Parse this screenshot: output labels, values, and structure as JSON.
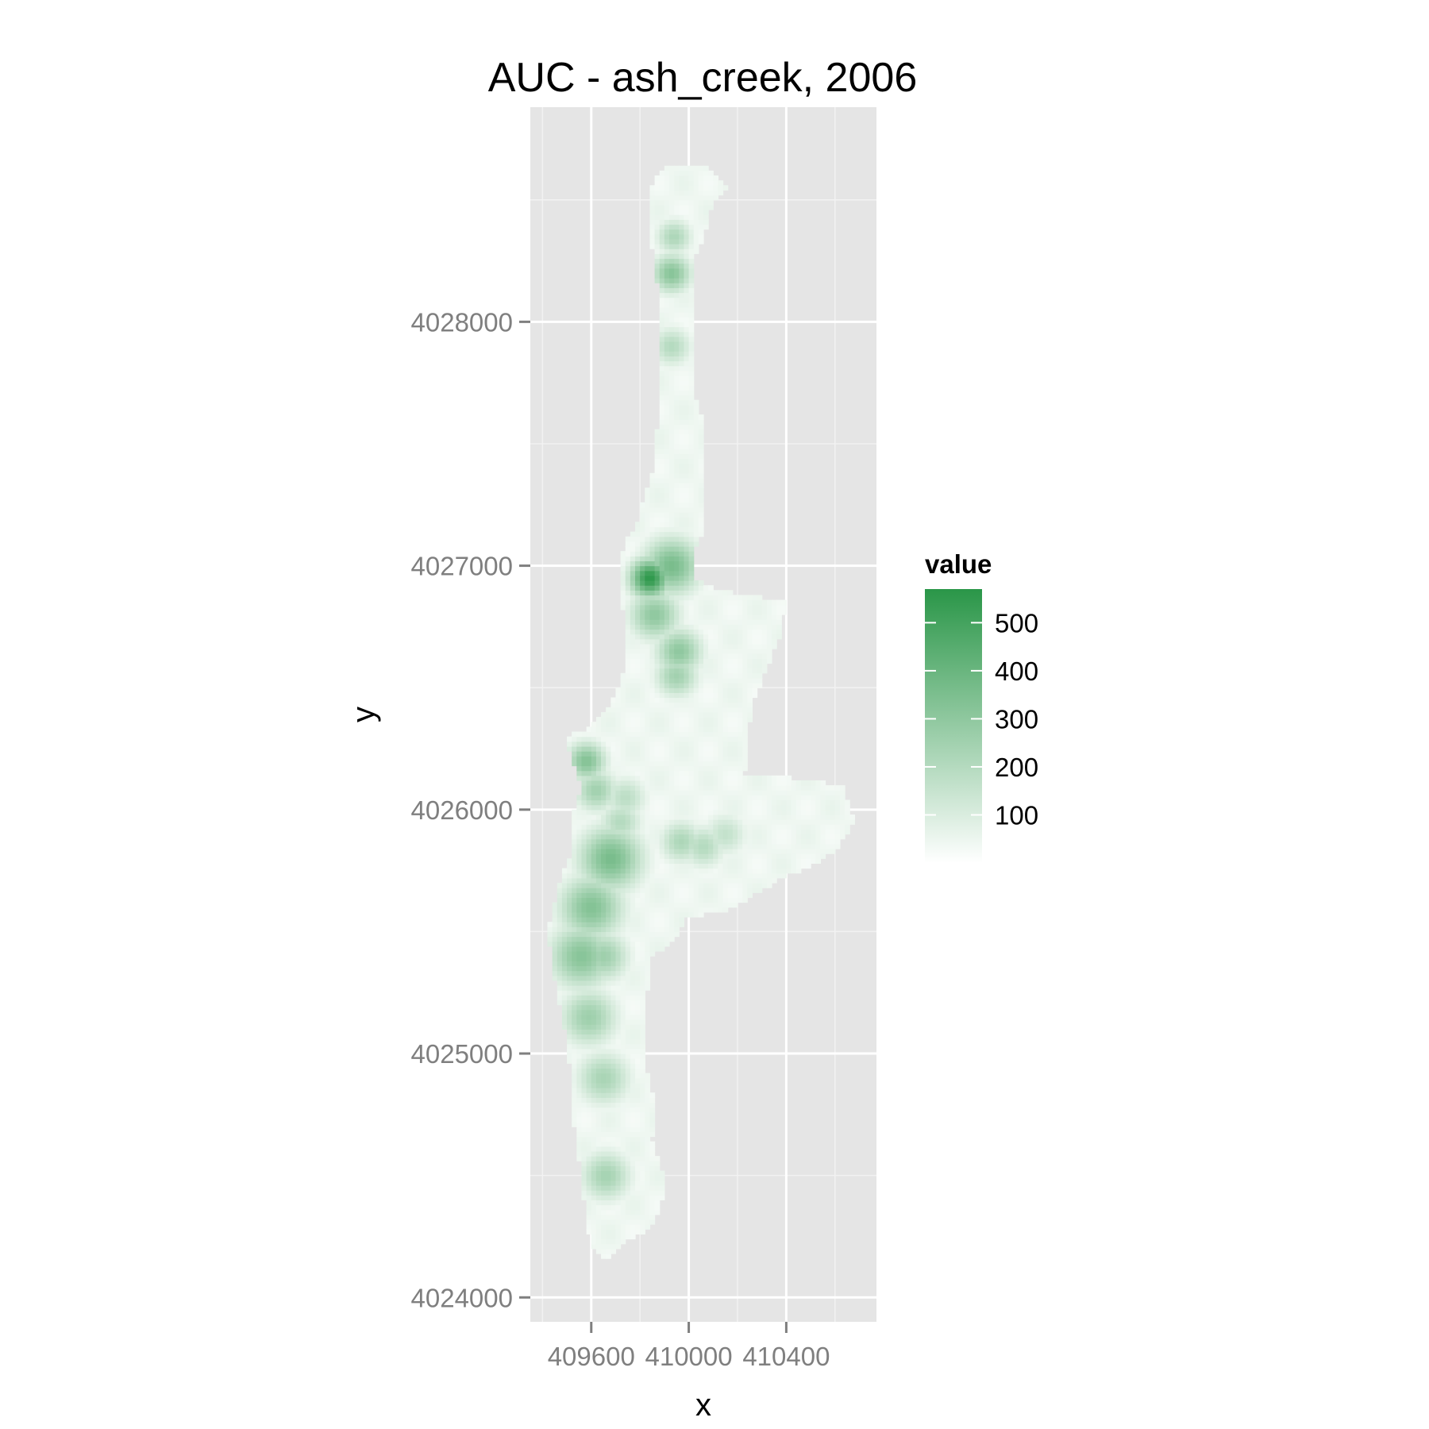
{
  "chart_data": {
    "type": "heatmap",
    "title": "AUC - ash_creek, 2006",
    "xlabel": "x",
    "ylabel": "y",
    "xlim": [
      409350,
      410770
    ],
    "ylim": [
      4023900,
      4028880
    ],
    "x_ticks": [
      409600,
      410000,
      410400
    ],
    "x_tick_labels": [
      "409600",
      "410000",
      "410400"
    ],
    "y_ticks": [
      4024000,
      4025000,
      4026000,
      4027000,
      4028000
    ],
    "y_tick_labels": [
      "4024000",
      "4025000",
      "4026000",
      "4027000",
      "4028000"
    ],
    "grid": true,
    "colors": {
      "panel": "#e5e5e5",
      "grid_major": "#ffffff",
      "grid_minor": "#f2f2f2",
      "low": "#ffffff",
      "high": "#2a9648"
    },
    "legend": {
      "title": "value",
      "position": "right",
      "min": 0,
      "max": 570,
      "breaks": [
        100,
        200,
        300,
        400,
        500
      ],
      "break_labels": [
        "100",
        "200",
        "300",
        "400",
        "500"
      ]
    },
    "region": {
      "cell_size": 20,
      "outline": [
        [
          409915,
          4028640
        ],
        [
          410050,
          4028650
        ],
        [
          410170,
          4028550
        ],
        [
          410100,
          4028500
        ],
        [
          410060,
          4028350
        ],
        [
          410020,
          4028250
        ],
        [
          410020,
          4027700
        ],
        [
          410060,
          4027600
        ],
        [
          410060,
          4027150
        ],
        [
          410020,
          4027050
        ],
        [
          410020,
          4026950
        ],
        [
          410130,
          4026900
        ],
        [
          410400,
          4026850
        ],
        [
          410370,
          4026700
        ],
        [
          410320,
          4026580
        ],
        [
          410270,
          4026450
        ],
        [
          410250,
          4026350
        ],
        [
          410230,
          4026150
        ],
        [
          410420,
          4026130
        ],
        [
          410630,
          4026100
        ],
        [
          410680,
          4025950
        ],
        [
          410600,
          4025830
        ],
        [
          410500,
          4025770
        ],
        [
          410380,
          4025720
        ],
        [
          410250,
          4025640
        ],
        [
          410150,
          4025580
        ],
        [
          409990,
          4025560
        ],
        [
          409930,
          4025450
        ],
        [
          409850,
          4025400
        ],
        [
          409830,
          4025250
        ],
        [
          409810,
          4025100
        ],
        [
          409820,
          4024950
        ],
        [
          409860,
          4024800
        ],
        [
          409850,
          4024650
        ],
        [
          409880,
          4024550
        ],
        [
          409910,
          4024470
        ],
        [
          409880,
          4024350
        ],
        [
          409830,
          4024270
        ],
        [
          409740,
          4024230
        ],
        [
          409660,
          4024150
        ],
        [
          409610,
          4024200
        ],
        [
          409580,
          4024300
        ],
        [
          409560,
          4024500
        ],
        [
          409530,
          4024700
        ],
        [
          409520,
          4024900
        ],
        [
          409490,
          4025100
        ],
        [
          409450,
          4025300
        ],
        [
          409420,
          4025500
        ],
        [
          409470,
          4025700
        ],
        [
          409530,
          4025850
        ],
        [
          409530,
          4026000
        ],
        [
          409560,
          4026100
        ],
        [
          409520,
          4026200
        ],
        [
          409490,
          4026300
        ],
        [
          409590,
          4026330
        ],
        [
          409690,
          4026450
        ],
        [
          409750,
          4026600
        ],
        [
          409740,
          4026750
        ],
        [
          409720,
          4026900
        ],
        [
          409710,
          4027000
        ],
        [
          409740,
          4027100
        ],
        [
          409780,
          4027150
        ],
        [
          409820,
          4027300
        ],
        [
          409860,
          4027400
        ],
        [
          409870,
          4027550
        ],
        [
          409880,
          4027700
        ],
        [
          409890,
          4027900
        ],
        [
          409880,
          4028100
        ],
        [
          409850,
          4028300
        ],
        [
          409830,
          4028500
        ],
        [
          409860,
          4028580
        ]
      ],
      "hotspots": [
        {
          "x": 409840,
          "y": 4026950,
          "value": 560,
          "radius": 55
        },
        {
          "x": 409930,
          "y": 4027000,
          "value": 360,
          "radius": 80
        },
        {
          "x": 409860,
          "y": 4026800,
          "value": 300,
          "radius": 70
        },
        {
          "x": 409960,
          "y": 4026650,
          "value": 300,
          "radius": 65
        },
        {
          "x": 409950,
          "y": 4026550,
          "value": 250,
          "radius": 60
        },
        {
          "x": 409930,
          "y": 4028200,
          "value": 320,
          "radius": 55
        },
        {
          "x": 409940,
          "y": 4028350,
          "value": 220,
          "radius": 50
        },
        {
          "x": 409930,
          "y": 4027900,
          "value": 200,
          "radius": 55
        },
        {
          "x": 409580,
          "y": 4026200,
          "value": 330,
          "radius": 55
        },
        {
          "x": 409620,
          "y": 4026080,
          "value": 250,
          "radius": 60
        },
        {
          "x": 409680,
          "y": 4025800,
          "value": 360,
          "radius": 90
        },
        {
          "x": 409600,
          "y": 4025600,
          "value": 330,
          "radius": 90
        },
        {
          "x": 409560,
          "y": 4025400,
          "value": 320,
          "radius": 90
        },
        {
          "x": 409650,
          "y": 4025400,
          "value": 260,
          "radius": 70
        },
        {
          "x": 409590,
          "y": 4025150,
          "value": 260,
          "radius": 80
        },
        {
          "x": 409650,
          "y": 4024900,
          "value": 230,
          "radius": 75
        },
        {
          "x": 409660,
          "y": 4024500,
          "value": 240,
          "radius": 70
        },
        {
          "x": 409970,
          "y": 4025870,
          "value": 220,
          "radius": 60
        },
        {
          "x": 410060,
          "y": 4025850,
          "value": 200,
          "radius": 60
        },
        {
          "x": 410150,
          "y": 4025900,
          "value": 160,
          "radius": 60
        },
        {
          "x": 409740,
          "y": 4026050,
          "value": 180,
          "radius": 60
        },
        {
          "x": 409720,
          "y": 4025950,
          "value": 200,
          "radius": 60
        }
      ]
    }
  }
}
